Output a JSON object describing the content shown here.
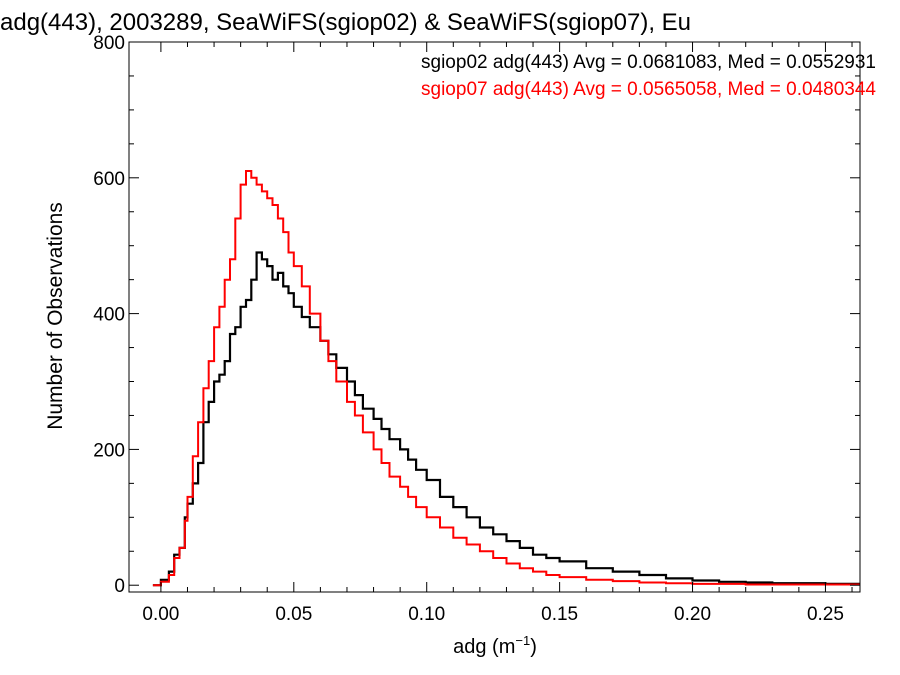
{
  "chart_data": {
    "type": "line",
    "title": "adg(443), 2003289, SeaWiFS(sgiop02) & SeaWiFS(sgiop07), Eu",
    "xlabel": "adg (m",
    "xlabel_sup": "−1",
    "xlabel_close": ")",
    "ylabel": "Number of Observations",
    "xlim": [
      -0.012,
      0.263
    ],
    "ylim": [
      -10,
      800
    ],
    "xticks": [
      0.0,
      0.05,
      0.1,
      0.15,
      0.2,
      0.25
    ],
    "xtick_labels": [
      "0.00",
      "0.05",
      "0.10",
      "0.15",
      "0.20",
      "0.25"
    ],
    "yticks": [
      0,
      200,
      400,
      600,
      800
    ],
    "ytick_labels": [
      "0",
      "200",
      "400",
      "600",
      "800"
    ],
    "line_style": "step",
    "legend_position": "top-right",
    "annotations": [
      {
        "text": "sgiop02 adg(443) Avg = 0.0681083, Med = 0.0552931",
        "color": "#000000"
      },
      {
        "text": "sgiop07 adg(443) Avg = 0.0565058, Med = 0.0480344",
        "color": "#ff0000"
      }
    ],
    "series": [
      {
        "color": "#000000",
        "x": [
          -0.003,
          0.0,
          0.003,
          0.005,
          0.007,
          0.009,
          0.01,
          0.012,
          0.014,
          0.016,
          0.018,
          0.02,
          0.022,
          0.024,
          0.026,
          0.028,
          0.03,
          0.032,
          0.034,
          0.036,
          0.038,
          0.04,
          0.042,
          0.044,
          0.046,
          0.048,
          0.05,
          0.053,
          0.056,
          0.06,
          0.063,
          0.066,
          0.07,
          0.073,
          0.076,
          0.08,
          0.083,
          0.086,
          0.09,
          0.093,
          0.096,
          0.1,
          0.105,
          0.11,
          0.115,
          0.12,
          0.125,
          0.13,
          0.135,
          0.14,
          0.145,
          0.15,
          0.16,
          0.17,
          0.18,
          0.19,
          0.2,
          0.21,
          0.22,
          0.23,
          0.24,
          0.25,
          0.262
        ],
        "y": [
          0,
          8,
          20,
          45,
          55,
          100,
          120,
          150,
          180,
          240,
          270,
          300,
          310,
          330,
          370,
          380,
          410,
          420,
          450,
          490,
          480,
          470,
          450,
          460,
          440,
          430,
          410,
          395,
          380,
          360,
          340,
          320,
          300,
          280,
          260,
          245,
          230,
          215,
          200,
          185,
          170,
          155,
          130,
          115,
          100,
          85,
          75,
          65,
          55,
          45,
          40,
          35,
          25,
          20,
          15,
          10,
          7,
          5,
          4,
          3,
          3,
          2,
          2
        ]
      },
      {
        "color": "#ff0000",
        "x": [
          -0.003,
          0.0,
          0.003,
          0.005,
          0.007,
          0.009,
          0.01,
          0.012,
          0.014,
          0.016,
          0.018,
          0.02,
          0.022,
          0.024,
          0.026,
          0.028,
          0.03,
          0.032,
          0.034,
          0.036,
          0.038,
          0.04,
          0.042,
          0.044,
          0.046,
          0.048,
          0.05,
          0.053,
          0.056,
          0.06,
          0.063,
          0.066,
          0.07,
          0.073,
          0.076,
          0.08,
          0.083,
          0.086,
          0.09,
          0.093,
          0.096,
          0.1,
          0.105,
          0.11,
          0.115,
          0.12,
          0.125,
          0.13,
          0.135,
          0.14,
          0.145,
          0.15,
          0.16,
          0.17,
          0.18,
          0.19,
          0.2,
          0.21,
          0.22,
          0.23,
          0.24,
          0.25,
          0.262
        ],
        "y": [
          0,
          5,
          15,
          40,
          55,
          95,
          130,
          190,
          240,
          290,
          330,
          380,
          410,
          450,
          480,
          540,
          590,
          610,
          600,
          590,
          580,
          570,
          560,
          540,
          520,
          490,
          470,
          440,
          400,
          360,
          330,
          300,
          270,
          250,
          225,
          200,
          180,
          160,
          145,
          130,
          115,
          100,
          85,
          70,
          60,
          50,
          40,
          32,
          25,
          20,
          15,
          12,
          8,
          6,
          4,
          3,
          2,
          2,
          1,
          1,
          1,
          1,
          1
        ]
      }
    ]
  }
}
